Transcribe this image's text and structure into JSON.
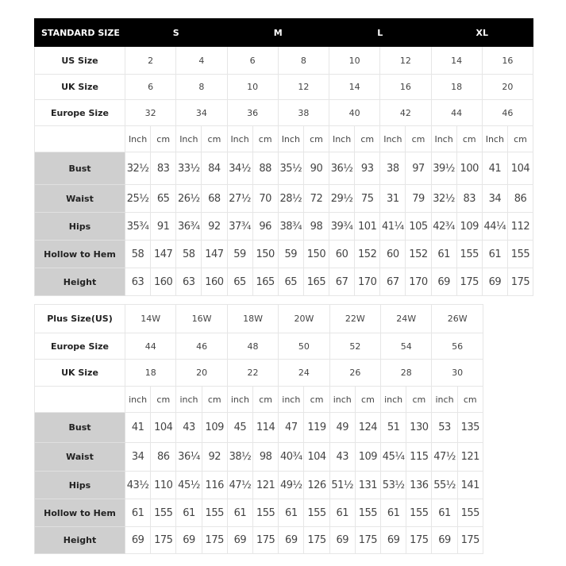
{
  "standard": {
    "header_label": "STANDARD SIZE",
    "groups": [
      "S",
      "M",
      "L",
      "XL"
    ],
    "size_rows": [
      {
        "label": "US Size",
        "values": [
          "2",
          "4",
          "6",
          "8",
          "10",
          "12",
          "14",
          "16"
        ]
      },
      {
        "label": "UK Size",
        "values": [
          "6",
          "8",
          "10",
          "12",
          "14",
          "16",
          "18",
          "20"
        ]
      },
      {
        "label": "Europe Size",
        "values": [
          "32",
          "34",
          "36",
          "38",
          "40",
          "42",
          "44",
          "46"
        ]
      }
    ],
    "units": [
      "Inch",
      "cm"
    ],
    "measure_rows": [
      {
        "label": "Bust",
        "values": [
          "32½",
          "83",
          "33½",
          "84",
          "34½",
          "88",
          "35½",
          "90",
          "36½",
          "93",
          "38",
          "97",
          "39½",
          "100",
          "41",
          "104"
        ]
      },
      {
        "label": "Waist",
        "values": [
          "25½",
          "65",
          "26½",
          "68",
          "27½",
          "70",
          "28½",
          "72",
          "29½",
          "75",
          "31",
          "79",
          "32½",
          "83",
          "34",
          "86"
        ]
      },
      {
        "label": "Hips",
        "values": [
          "35¾",
          "91",
          "36¾",
          "92",
          "37¾",
          "96",
          "38¾",
          "98",
          "39¾",
          "101",
          "41¼",
          "105",
          "42¾",
          "109",
          "44¼",
          "112"
        ]
      },
      {
        "label": "Hollow to Hem",
        "values": [
          "58",
          "147",
          "58",
          "147",
          "59",
          "150",
          "59",
          "150",
          "60",
          "152",
          "60",
          "152",
          "61",
          "155",
          "61",
          "155"
        ]
      },
      {
        "label": "Height",
        "values": [
          "63",
          "160",
          "63",
          "160",
          "65",
          "165",
          "65",
          "165",
          "67",
          "170",
          "67",
          "170",
          "69",
          "175",
          "69",
          "175"
        ]
      }
    ]
  },
  "plus": {
    "size_rows": [
      {
        "label": "Plus Size(US)",
        "values": [
          "14W",
          "16W",
          "18W",
          "20W",
          "22W",
          "24W",
          "26W"
        ]
      },
      {
        "label": "Europe Size",
        "values": [
          "44",
          "46",
          "48",
          "50",
          "52",
          "54",
          "56"
        ]
      },
      {
        "label": "UK Size",
        "values": [
          "18",
          "20",
          "22",
          "24",
          "26",
          "28",
          "30"
        ]
      }
    ],
    "units": [
      "inch",
      "cm"
    ],
    "measure_rows": [
      {
        "label": "Bust",
        "values": [
          "41",
          "104",
          "43",
          "109",
          "45",
          "114",
          "47",
          "119",
          "49",
          "124",
          "51",
          "130",
          "53",
          "135"
        ]
      },
      {
        "label": "Waist",
        "values": [
          "34",
          "86",
          "36¼",
          "92",
          "38½",
          "98",
          "40¾",
          "104",
          "43",
          "109",
          "45¼",
          "115",
          "47½",
          "121"
        ]
      },
      {
        "label": "Hips",
        "values": [
          "43½",
          "110",
          "45½",
          "116",
          "47½",
          "121",
          "49½",
          "126",
          "51½",
          "131",
          "53½",
          "136",
          "55½",
          "141"
        ]
      },
      {
        "label": "Hollow to Hem",
        "values": [
          "61",
          "155",
          "61",
          "155",
          "61",
          "155",
          "61",
          "155",
          "61",
          "155",
          "61",
          "155",
          "61",
          "155"
        ]
      },
      {
        "label": "Height",
        "values": [
          "69",
          "175",
          "69",
          "175",
          "69",
          "175",
          "69",
          "175",
          "69",
          "175",
          "69",
          "175",
          "69",
          "175"
        ]
      }
    ]
  },
  "colors": {
    "header_bg": "#000000",
    "label_bg": "#cfcfcf"
  }
}
